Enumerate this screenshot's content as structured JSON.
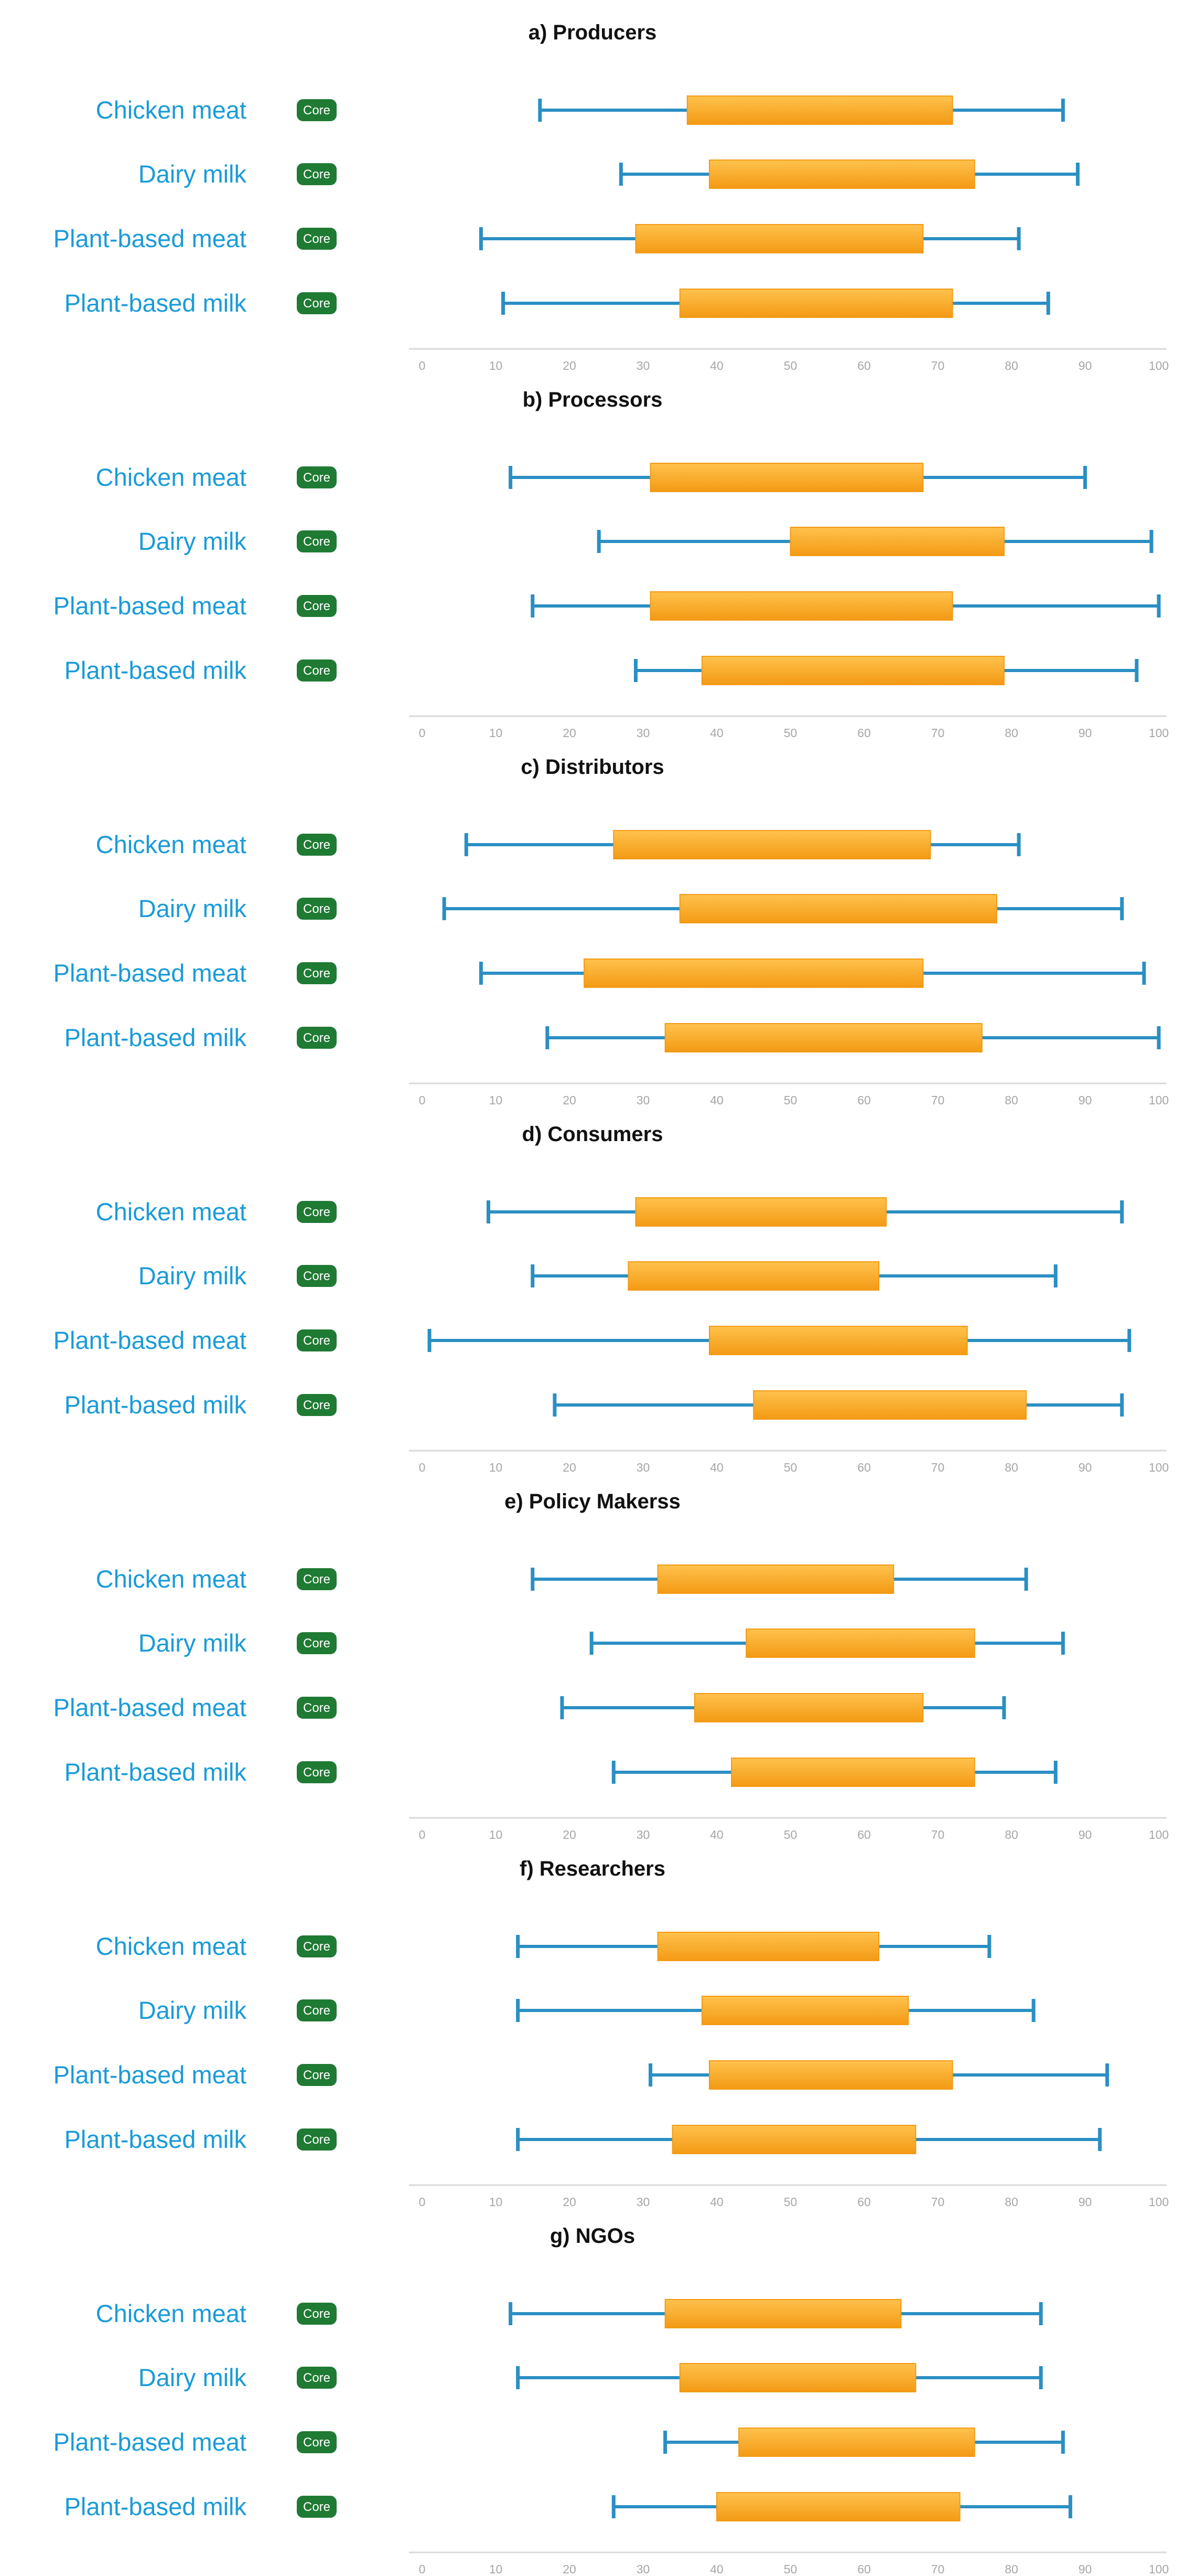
{
  "chart_data": {
    "type": "boxplot-range",
    "badge_label": "Core",
    "categories": [
      "Chicken meat",
      "Dairy milk",
      "Plant-based meat",
      "Plant-based milk"
    ],
    "x_ticks": [
      0,
      10,
      20,
      30,
      40,
      50,
      60,
      70,
      80,
      90,
      100
    ],
    "xlim": [
      0,
      100
    ],
    "colors": {
      "label": "#1a9bd7",
      "whisker": "#2a8fc4",
      "box_light": "#ffc24d",
      "box_dark": "#f39a14",
      "badge": "#1f7a33",
      "axis": "#d9d9d9",
      "tick": "#a6a6a6"
    },
    "panels": [
      {
        "title": "a) Producers",
        "rows": [
          {
            "category": "Chicken meat",
            "whisker_low": 16,
            "box_low": 36,
            "box_high": 72,
            "whisker_high": 87
          },
          {
            "category": "Dairy milk",
            "whisker_low": 27,
            "box_low": 39,
            "box_high": 75,
            "whisker_high": 89
          },
          {
            "category": "Plant-based meat",
            "whisker_low": 8,
            "box_low": 29,
            "box_high": 68,
            "whisker_high": 81
          },
          {
            "category": "Plant-based milk",
            "whisker_low": 11,
            "box_low": 35,
            "box_high": 72,
            "whisker_high": 85
          }
        ]
      },
      {
        "title": "b) Processors",
        "rows": [
          {
            "category": "Chicken meat",
            "whisker_low": 12,
            "box_low": 31,
            "box_high": 68,
            "whisker_high": 90
          },
          {
            "category": "Dairy milk",
            "whisker_low": 24,
            "box_low": 50,
            "box_high": 79,
            "whisker_high": 99
          },
          {
            "category": "Plant-based meat",
            "whisker_low": 15,
            "box_low": 31,
            "box_high": 72,
            "whisker_high": 100
          },
          {
            "category": "Plant-based milk",
            "whisker_low": 29,
            "box_low": 38,
            "box_high": 79,
            "whisker_high": 97
          }
        ]
      },
      {
        "title": "c) Distributors",
        "rows": [
          {
            "category": "Chicken meat",
            "whisker_low": 6,
            "box_low": 26,
            "box_high": 69,
            "whisker_high": 81
          },
          {
            "category": "Dairy milk",
            "whisker_low": 3,
            "box_low": 35,
            "box_high": 78,
            "whisker_high": 95
          },
          {
            "category": "Plant-based meat",
            "whisker_low": 8,
            "box_low": 22,
            "box_high": 68,
            "whisker_high": 98
          },
          {
            "category": "Plant-based milk",
            "whisker_low": 17,
            "box_low": 33,
            "box_high": 76,
            "whisker_high": 100
          }
        ]
      },
      {
        "title": "d) Consumers",
        "rows": [
          {
            "category": "Chicken meat",
            "whisker_low": 9,
            "box_low": 29,
            "box_high": 63,
            "whisker_high": 95
          },
          {
            "category": "Dairy milk",
            "whisker_low": 15,
            "box_low": 28,
            "box_high": 62,
            "whisker_high": 86
          },
          {
            "category": "Plant-based meat",
            "whisker_low": 1,
            "box_low": 39,
            "box_high": 74,
            "whisker_high": 96
          },
          {
            "category": "Plant-based milk",
            "whisker_low": 18,
            "box_low": 45,
            "box_high": 82,
            "whisker_high": 95
          }
        ]
      },
      {
        "title": "e) Policy Makerss",
        "rows": [
          {
            "category": "Chicken meat",
            "whisker_low": 15,
            "box_low": 32,
            "box_high": 64,
            "whisker_high": 82
          },
          {
            "category": "Dairy milk",
            "whisker_low": 23,
            "box_low": 44,
            "box_high": 75,
            "whisker_high": 87
          },
          {
            "category": "Plant-based meat",
            "whisker_low": 19,
            "box_low": 37,
            "box_high": 68,
            "whisker_high": 79
          },
          {
            "category": "Plant-based milk",
            "whisker_low": 26,
            "box_low": 42,
            "box_high": 75,
            "whisker_high": 86
          }
        ]
      },
      {
        "title": "f) Researchers",
        "rows": [
          {
            "category": "Chicken meat",
            "whisker_low": 13,
            "box_low": 32,
            "box_high": 62,
            "whisker_high": 77
          },
          {
            "category": "Dairy milk",
            "whisker_low": 13,
            "box_low": 38,
            "box_high": 66,
            "whisker_high": 83
          },
          {
            "category": "Plant-based meat",
            "whisker_low": 31,
            "box_low": 39,
            "box_high": 72,
            "whisker_high": 93
          },
          {
            "category": "Plant-based milk",
            "whisker_low": 13,
            "box_low": 34,
            "box_high": 67,
            "whisker_high": 92
          }
        ]
      },
      {
        "title": "g) NGOs",
        "rows": [
          {
            "category": "Chicken meat",
            "whisker_low": 12,
            "box_low": 33,
            "box_high": 65,
            "whisker_high": 84
          },
          {
            "category": "Dairy milk",
            "whisker_low": 13,
            "box_low": 35,
            "box_high": 67,
            "whisker_high": 84
          },
          {
            "category": "Plant-based meat",
            "whisker_low": 33,
            "box_low": 43,
            "box_high": 75,
            "whisker_high": 87
          },
          {
            "category": "Plant-based milk",
            "whisker_low": 26,
            "box_low": 40,
            "box_high": 73,
            "whisker_high": 88
          }
        ]
      }
    ]
  }
}
